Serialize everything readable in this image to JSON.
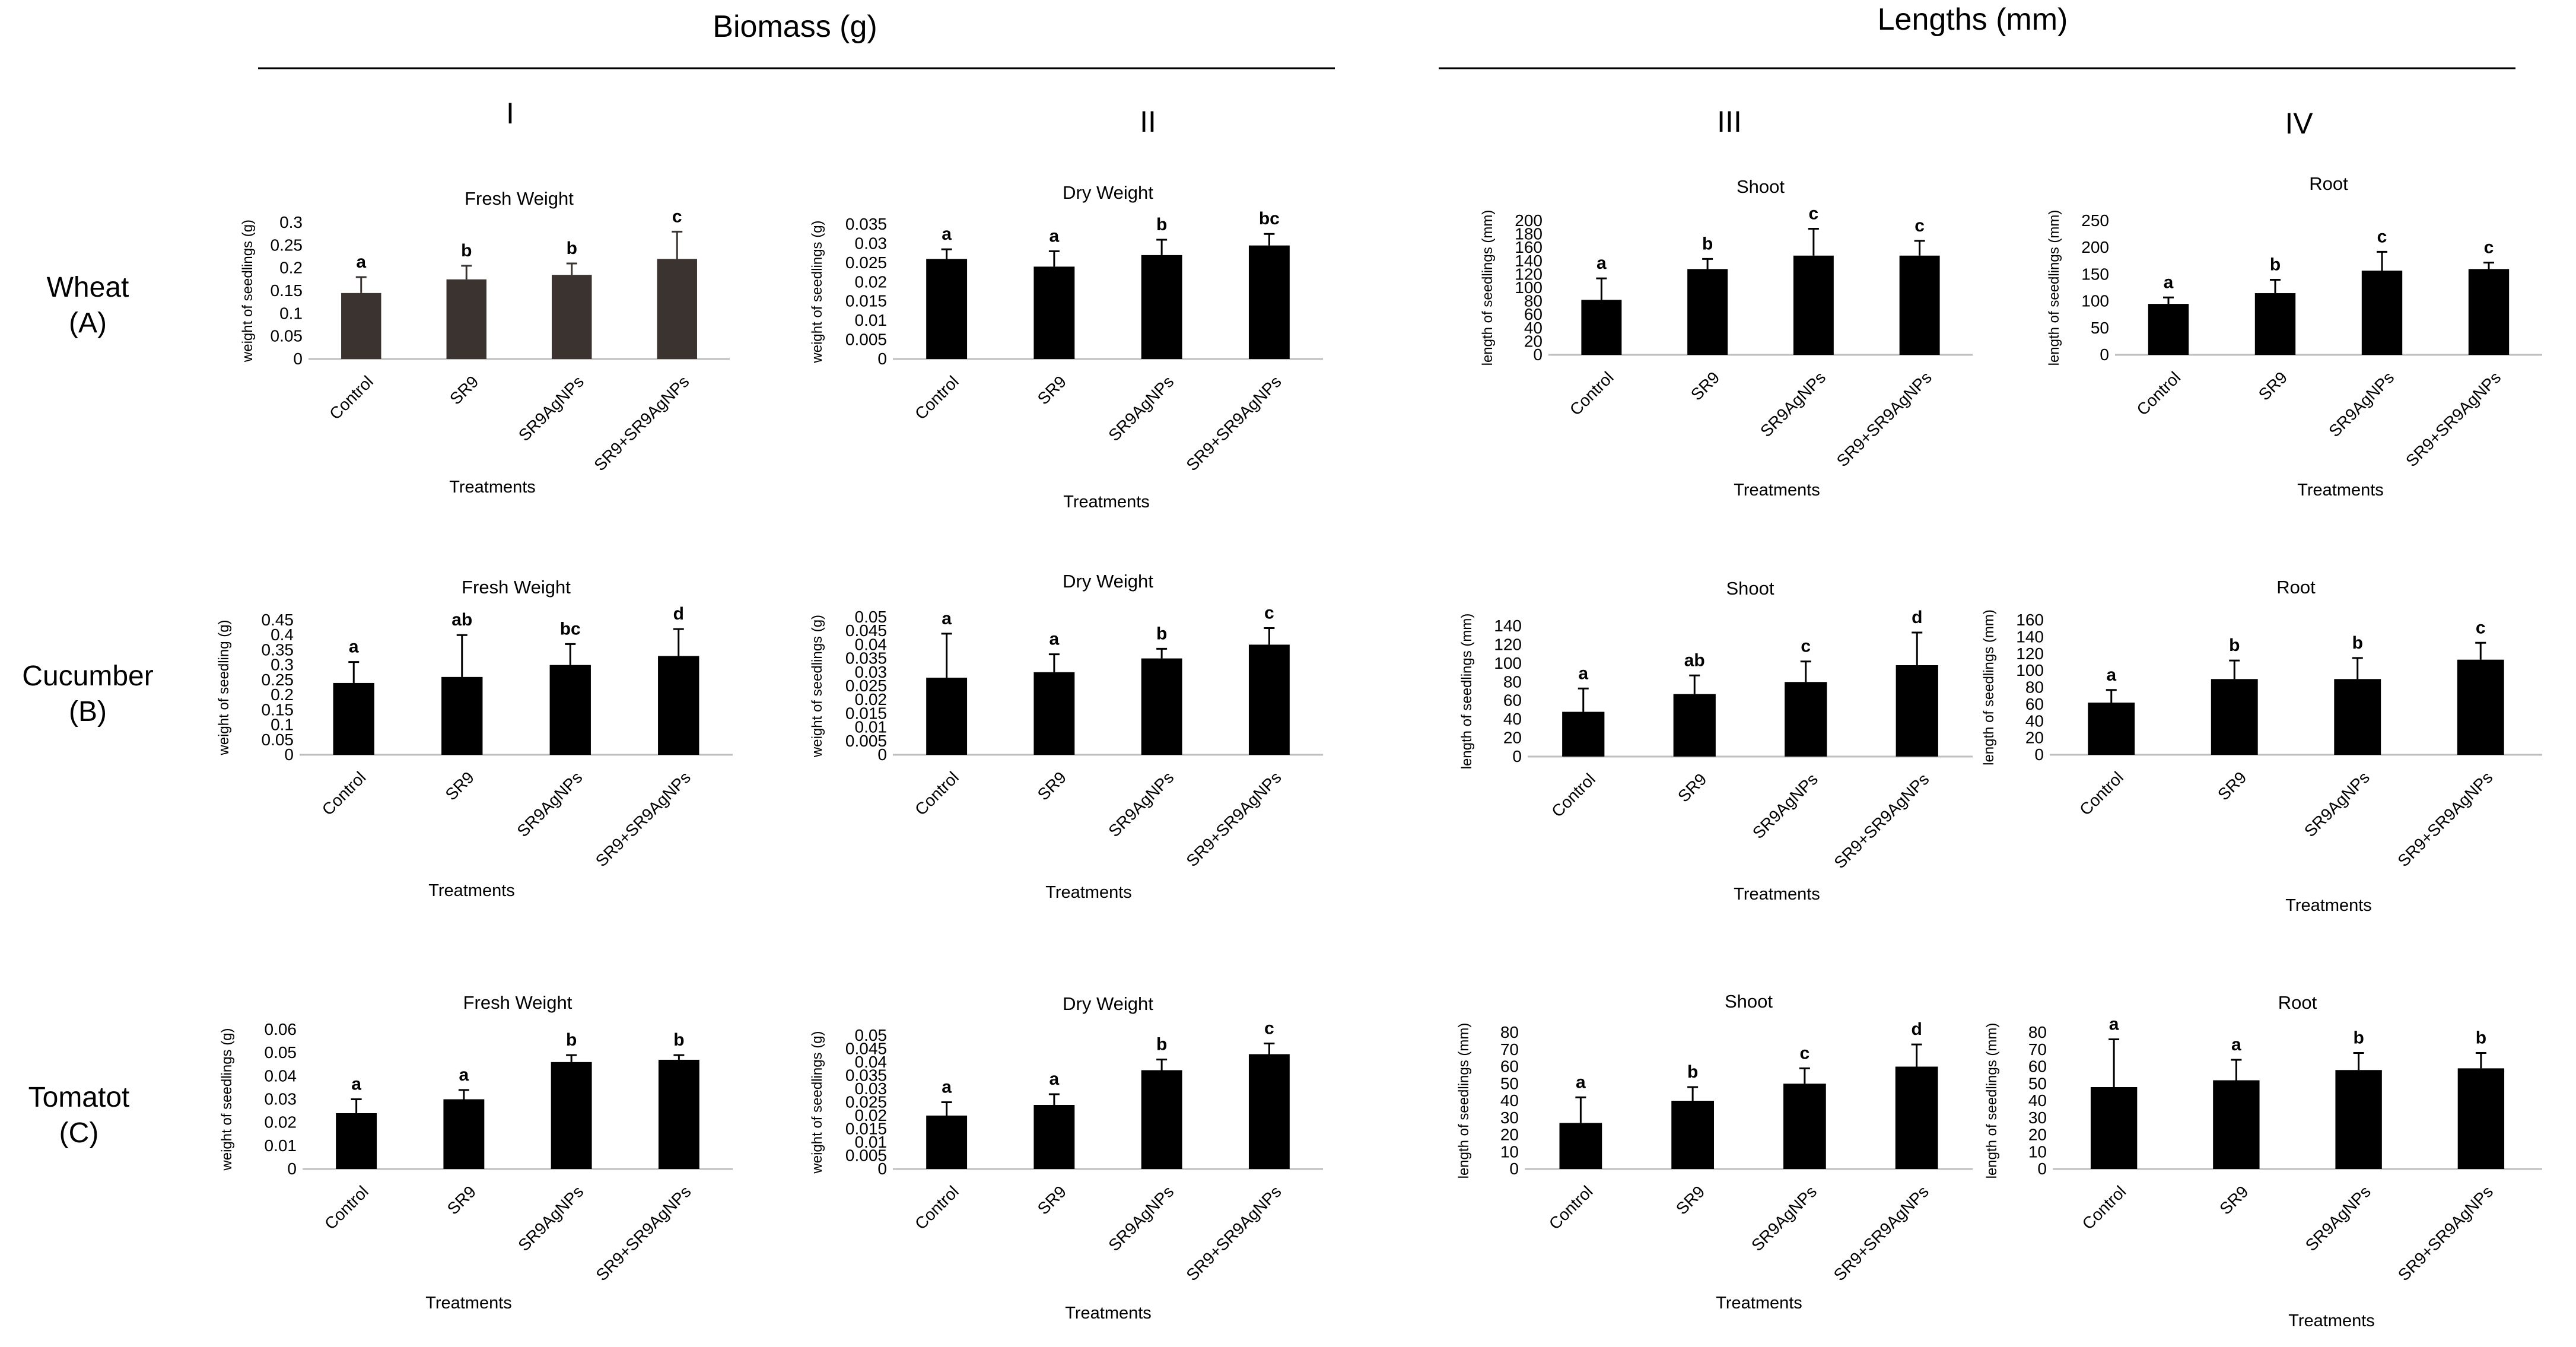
{
  "section_headers": [
    "Biomass (g)",
    "Lengths (mm)"
  ],
  "column_labels": [
    "I",
    "II",
    "III",
    "IV"
  ],
  "row_labels": [
    {
      "name": "Wheat",
      "code": "(A)"
    },
    {
      "name": "Cucumber",
      "code": "(B)"
    },
    {
      "name": "Tomatot",
      "code": "(C)"
    }
  ],
  "colors": {
    "bar_dark_brown": "#3b3330",
    "bar_black": "#000000",
    "axis": "#bfbfbf"
  },
  "chart_data": [
    {
      "id": "A-I",
      "type": "bar",
      "title": "Fresh Weight",
      "xlabel": "Treatments",
      "ylabel": "weight of seedlings (g)",
      "color": "#3b3330",
      "categories": [
        "Control",
        "SR9",
        "SR9AgNPs",
        "SR9+SR9AgNPs"
      ],
      "values": [
        0.145,
        0.175,
        0.185,
        0.22
      ],
      "errors": [
        0.035,
        0.03,
        0.025,
        0.06
      ],
      "letters": [
        "a",
        "b",
        "b",
        "c"
      ],
      "ylim": [
        0,
        0.3
      ],
      "ticks": [
        "0",
        "0.05",
        "0.1",
        "0.15",
        "0.2",
        "0.25",
        "0.3"
      ]
    },
    {
      "id": "A-II",
      "type": "bar",
      "title": "Dry Weight",
      "xlabel": "Treatments",
      "ylabel": "weight of seedlings (g)",
      "color": "#000000",
      "categories": [
        "Control",
        "SR9",
        "SR9AgNPs",
        "SR9+SR9AgNPs"
      ],
      "values": [
        0.026,
        0.024,
        0.027,
        0.0295
      ],
      "errors": [
        0.0025,
        0.004,
        0.004,
        0.003
      ],
      "letters": [
        "a",
        "a",
        "b",
        "bc"
      ],
      "ylim": [
        0,
        0.035
      ],
      "ticks": [
        "0",
        "0.005",
        "0.01",
        "0.015",
        "0.02",
        "0.025",
        "0.03",
        "0.035"
      ]
    },
    {
      "id": "A-III",
      "type": "bar",
      "title": "Shoot",
      "xlabel": "Treatments",
      "ylabel": "length of seedlings (mm)",
      "color": "#000000",
      "categories": [
        "Control",
        "SR9",
        "SR9AgNPs",
        "SR9+SR9AgNPs"
      ],
      "values": [
        82,
        128,
        148,
        148
      ],
      "errors": [
        32,
        15,
        40,
        22
      ],
      "letters": [
        "a",
        "b",
        "c",
        "c"
      ],
      "ylim": [
        0,
        200
      ],
      "ticks": [
        "0",
        "20",
        "40",
        "60",
        "80",
        "100",
        "120",
        "140",
        "160",
        "180",
        "200"
      ]
    },
    {
      "id": "A-IV",
      "type": "bar",
      "title": "Root",
      "xlabel": "Treatments",
      "ylabel": "length of seedlings (mm)",
      "color": "#000000",
      "categories": [
        "Control",
        "SR9",
        "SR9AgNPs",
        "SR9+SR9AgNPs"
      ],
      "values": [
        95,
        115,
        157,
        160
      ],
      "errors": [
        12,
        25,
        35,
        12
      ],
      "letters": [
        "a",
        "b",
        "c",
        "c"
      ],
      "ylim": [
        0,
        250
      ],
      "ticks": [
        "0",
        "50",
        "100",
        "150",
        "200",
        "250"
      ]
    },
    {
      "id": "B-I",
      "type": "bar",
      "title": "Fresh Weight",
      "xlabel": "Treatments",
      "ylabel": "weight of seedling (g)",
      "color": "#000000",
      "categories": [
        "Control",
        "SR9",
        "SR9AgNPs",
        "SR9+SR9AgNPs"
      ],
      "values": [
        0.24,
        0.26,
        0.3,
        0.33
      ],
      "errors": [
        0.07,
        0.14,
        0.07,
        0.09
      ],
      "letters": [
        "a",
        "ab",
        "bc",
        "d"
      ],
      "ylim": [
        0,
        0.45
      ],
      "ticks": [
        "0",
        "0.05",
        "0.1",
        "0.15",
        "0.2",
        "0.25",
        "0.3",
        "0.35",
        "0.4",
        "0.45"
      ]
    },
    {
      "id": "B-II",
      "type": "bar",
      "title": "Dry Weight",
      "xlabel": "Treatments",
      "ylabel": "weight of seedlings (g)",
      "color": "#000000",
      "categories": [
        "Control",
        "SR9",
        "SR9AgNPs",
        "SR9+SR9AgNPs"
      ],
      "values": [
        0.028,
        0.03,
        0.035,
        0.04
      ],
      "errors": [
        0.016,
        0.0065,
        0.0035,
        0.006
      ],
      "letters": [
        "a",
        "a",
        "b",
        "c"
      ],
      "ylim": [
        0,
        0.05
      ],
      "ticks": [
        "0",
        "0.005",
        "0.01",
        "0.015",
        "0.02",
        "0.025",
        "0.03",
        "0.035",
        "0.04",
        "0.045",
        "0.05"
      ]
    },
    {
      "id": "B-III",
      "type": "bar",
      "title": "Shoot",
      "xlabel": "Treatments",
      "ylabel": "length of seedlings (mm)",
      "color": "#000000",
      "categories": [
        "Control",
        "SR9",
        "SR9AgNPs",
        "SR9+SR9AgNPs"
      ],
      "values": [
        48,
        67,
        80,
        98
      ],
      "errors": [
        25,
        20,
        22,
        35
      ],
      "letters": [
        "a",
        "ab",
        "c",
        "d"
      ],
      "ylim": [
        0,
        140
      ],
      "ticks": [
        "0",
        "20",
        "40",
        "60",
        "80",
        "100",
        "120",
        "140"
      ]
    },
    {
      "id": "B-IV",
      "type": "bar",
      "title": "Root",
      "xlabel": "Treatments",
      "ylabel": "length of seedlings (mm)",
      "color": "#000000",
      "categories": [
        "Control",
        "SR9",
        "SR9AgNPs",
        "SR9+SR9AgNPs"
      ],
      "values": [
        62,
        90,
        90,
        113
      ],
      "errors": [
        15,
        22,
        25,
        20
      ],
      "letters": [
        "a",
        "b",
        "b",
        "c"
      ],
      "ylim": [
        0,
        160
      ],
      "ticks": [
        "0",
        "20",
        "40",
        "60",
        "80",
        "100",
        "120",
        "140",
        "160"
      ]
    },
    {
      "id": "C-I",
      "type": "bar",
      "title": "Fresh Weight",
      "xlabel": "Treatments",
      "ylabel": "weight of seedlings (g)",
      "color": "#000000",
      "categories": [
        "Control",
        "SR9",
        "SR9AgNPs",
        "SR9+SR9AgNPs"
      ],
      "values": [
        0.024,
        0.03,
        0.046,
        0.047
      ],
      "errors": [
        0.006,
        0.004,
        0.003,
        0.002
      ],
      "letters": [
        "a",
        "a",
        "b",
        "b"
      ],
      "ylim": [
        0,
        0.06
      ],
      "ticks": [
        "0",
        "0.01",
        "0.02",
        "0.03",
        "0.04",
        "0.05",
        "0.06"
      ]
    },
    {
      "id": "C-II",
      "type": "bar",
      "title": "Dry Weight",
      "xlabel": "Treatments",
      "ylabel": "weight of seedlings (g)",
      "color": "#000000",
      "categories": [
        "Control",
        "SR9",
        "SR9AgNPs",
        "SR9+SR9AgNPs"
      ],
      "values": [
        0.02,
        0.024,
        0.037,
        0.043
      ],
      "errors": [
        0.005,
        0.004,
        0.004,
        0.004
      ],
      "letters": [
        "a",
        "a",
        "b",
        "c"
      ],
      "ylim": [
        0,
        0.05
      ],
      "ticks": [
        "0",
        "0.005",
        "0.01",
        "0.015",
        "0.02",
        "0.025",
        "0.03",
        "0.035",
        "0.04",
        "0.045",
        "0.05"
      ]
    },
    {
      "id": "C-III",
      "type": "bar",
      "title": "Shoot",
      "xlabel": "Treatments",
      "ylabel": "length of seedlings (mm)",
      "color": "#000000",
      "categories": [
        "Control",
        "SR9",
        "SR9AgNPs",
        "SR9+SR9AgNPs"
      ],
      "values": [
        27,
        40,
        50,
        60
      ],
      "errors": [
        15,
        8,
        9,
        13
      ],
      "letters": [
        "a",
        "b",
        "c",
        "d"
      ],
      "ylim": [
        0,
        80
      ],
      "ticks": [
        "0",
        "10",
        "20",
        "30",
        "40",
        "50",
        "60",
        "70",
        "80"
      ]
    },
    {
      "id": "C-IV",
      "type": "bar",
      "title": "Root",
      "xlabel": "Treatments",
      "ylabel": "length of seedlings (mm)",
      "color": "#000000",
      "categories": [
        "Control",
        "SR9",
        "SR9AgNPs",
        "SR9+SR9AgNPs"
      ],
      "values": [
        48,
        52,
        58,
        59
      ],
      "errors": [
        28,
        12,
        10,
        9
      ],
      "letters": [
        "a",
        "a",
        "b",
        "b"
      ],
      "ylim": [
        0,
        80
      ],
      "ticks": [
        "0",
        "10",
        "20",
        "30",
        "40",
        "50",
        "60",
        "70",
        "80"
      ]
    }
  ]
}
